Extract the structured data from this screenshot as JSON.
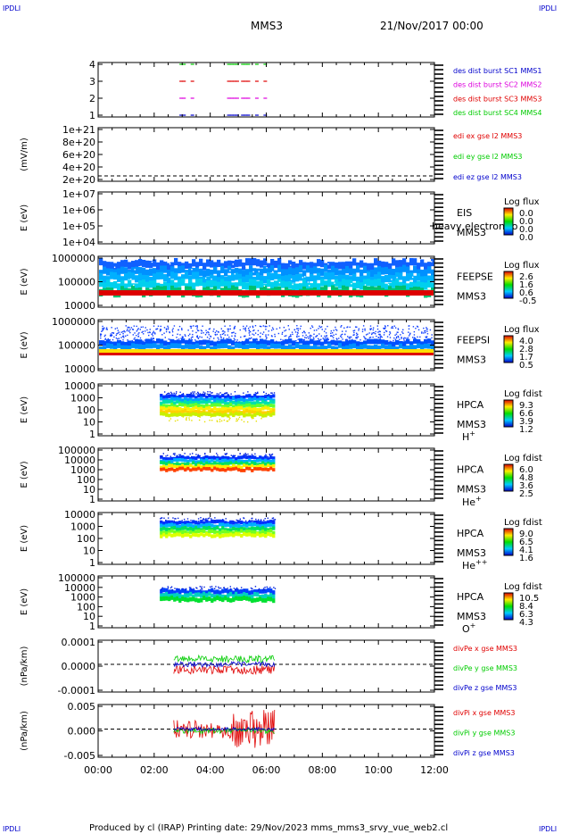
{
  "header": {
    "corner_label": "IPDLI",
    "title": "MMS3",
    "date": "21/Nov/2017 00:00"
  },
  "footer": {
    "text": "Produced by cl (IRAP)   Printing date: 29/Nov/2023   mms_mms3_srvy_vue_web2.cl"
  },
  "colors": {
    "red": "#e00000",
    "green": "#00cc00",
    "blue": "#0000cc",
    "magenta": "#dd00dd",
    "axis": "#000000"
  },
  "chart_data": [
    {
      "id": "burst",
      "type": "scatter",
      "ylabel": "",
      "xlim": [
        "00:00",
        "12:00"
      ],
      "yticks": [
        "1",
        "2",
        "3",
        "4"
      ],
      "ylim": [
        0.5,
        4.5
      ],
      "series": [
        {
          "name": "des dist burst SC1 MMS1",
          "color": "#0000cc",
          "y": 1,
          "x": [
            2.9,
            3.0,
            3.3,
            4.6,
            4.7,
            4.8,
            4.9,
            5.1,
            5.2,
            5.3,
            5.6,
            5.9
          ]
        },
        {
          "name": "des dist burst SC2 MMS2",
          "color": "#dd00dd",
          "y": 2,
          "x": [
            2.9,
            3.0,
            3.3,
            4.6,
            4.7,
            4.8,
            4.9,
            5.1,
            5.2,
            5.3,
            5.6,
            5.9
          ]
        },
        {
          "name": "des dist burst SC3 MMS3",
          "color": "#e00000",
          "y": 3,
          "x": [
            2.9,
            3.0,
            3.3,
            4.6,
            4.7,
            4.8,
            4.9,
            5.1,
            5.2,
            5.3,
            5.6,
            5.9
          ]
        },
        {
          "name": "des dist burst SC4 MMS4",
          "color": "#00cc00",
          "y": 4,
          "x": [
            2.9,
            3.0,
            3.3,
            4.6,
            4.7,
            4.8,
            4.9,
            5.1,
            5.2,
            5.3,
            5.6,
            5.9
          ]
        }
      ]
    },
    {
      "id": "edi",
      "type": "line",
      "ylabel": "(mV/m)",
      "yticks": [
        "2e+20",
        "4e+20",
        "6e+20",
        "8e+20",
        "1e+21"
      ],
      "ylim": [
        0,
        1e+21
      ],
      "legend": [
        {
          "name": "edi ex gse l2 MMS3",
          "color": "#e00000"
        },
        {
          "name": "edi ey gse l2 MMS3",
          "color": "#00cc00"
        },
        {
          "name": "edi ez gse l2 MMS3",
          "color": "#0000cc"
        }
      ]
    },
    {
      "id": "eis",
      "type": "heatmap",
      "ylabel": "E (eV)",
      "yticks": [
        "1e+04",
        "1e+05",
        "1e+06",
        "1e+07"
      ],
      "side_labels": [
        "EIS",
        "MMS3"
      ],
      "overlay_text": "heavy electron to",
      "colorbar": {
        "title": "Log flux",
        "values": [
          "0.0",
          "0.0",
          "0.0",
          "0.0"
        ]
      }
    },
    {
      "id": "feepse",
      "type": "heatmap",
      "ylabel": "E (eV)",
      "yticks": [
        "10000",
        "100000",
        "1000000"
      ],
      "side_labels": [
        "FEEPSE",
        "MMS3"
      ],
      "colorbar": {
        "title": "Log flux",
        "values": [
          "2.6",
          "1.6",
          "0.6",
          "-0.5"
        ]
      }
    },
    {
      "id": "feepsi",
      "type": "heatmap",
      "ylabel": "E (eV)",
      "yticks": [
        "10000",
        "100000",
        "1000000"
      ],
      "side_labels": [
        "FEEPSI",
        "MMS3"
      ],
      "colorbar": {
        "title": "Log flux",
        "values": [
          "4.0",
          "2.8",
          "1.7",
          "0.5"
        ]
      }
    },
    {
      "id": "hpca_h",
      "type": "heatmap",
      "ylabel": "E (eV)",
      "yticks": [
        "1",
        "10",
        "100",
        "1000",
        "10000"
      ],
      "side_labels": [
        "HPCA",
        "MMS3"
      ],
      "species": "H",
      "species_sup": "+",
      "colorbar": {
        "title": "Log fdist",
        "values": [
          "9.3",
          "6.6",
          "3.9",
          "1.2"
        ]
      }
    },
    {
      "id": "hpca_he",
      "type": "heatmap",
      "ylabel": "E (eV)",
      "yticks": [
        "1",
        "10",
        "100",
        "1000",
        "10000",
        "100000"
      ],
      "side_labels": [
        "HPCA",
        "MMS3"
      ],
      "species": "He",
      "species_sup": "+",
      "colorbar": {
        "title": "Log fdist",
        "values": [
          "6.0",
          "4.8",
          "3.6",
          "2.5"
        ]
      }
    },
    {
      "id": "hpca_hepp",
      "type": "heatmap",
      "ylabel": "E (eV)",
      "yticks": [
        "1",
        "10",
        "100",
        "1000",
        "10000"
      ],
      "side_labels": [
        "HPCA",
        "MMS3"
      ],
      "species": "He",
      "species_sup": "++",
      "colorbar": {
        "title": "Log fdist",
        "values": [
          "9.0",
          "6.5",
          "4.1",
          "1.6"
        ]
      }
    },
    {
      "id": "hpca_o",
      "type": "heatmap",
      "ylabel": "E (eV)",
      "yticks": [
        "1",
        "10",
        "100",
        "1000",
        "10000",
        "100000"
      ],
      "side_labels": [
        "HPCA",
        "MMS3"
      ],
      "species": "O",
      "species_sup": "+",
      "colorbar": {
        "title": "Log fdist",
        "values": [
          "10.5",
          "8.4",
          "6.3",
          "4.3"
        ]
      }
    },
    {
      "id": "divpe",
      "type": "line",
      "ylabel": "(nPa/km)",
      "yticks": [
        "-0.0001",
        "0.0000",
        "0.0001"
      ],
      "ylim": [
        -0.00018,
        0.00015
      ],
      "legend": [
        {
          "name": "divPe x gse MMS3",
          "color": "#e00000"
        },
        {
          "name": "divPe y gse MMS3",
          "color": "#00cc00"
        },
        {
          "name": "divPe z gse MMS3",
          "color": "#0000cc"
        }
      ]
    },
    {
      "id": "divpi",
      "type": "line",
      "ylabel": "(nPa/km)",
      "yticks": [
        "-0.005",
        "0.000",
        "0.005"
      ],
      "ylim": [
        -0.0088,
        0.0098
      ],
      "legend": [
        {
          "name": "divPi x gse MMS3",
          "color": "#e00000"
        },
        {
          "name": "divPi y gse MMS3",
          "color": "#00cc00"
        },
        {
          "name": "divPi z gse MMS3",
          "color": "#0000cc"
        }
      ]
    }
  ],
  "xaxis": {
    "ticks": [
      "00:00",
      "02:00",
      "04:00",
      "06:00",
      "08:00",
      "10:00",
      "12:00"
    ]
  }
}
